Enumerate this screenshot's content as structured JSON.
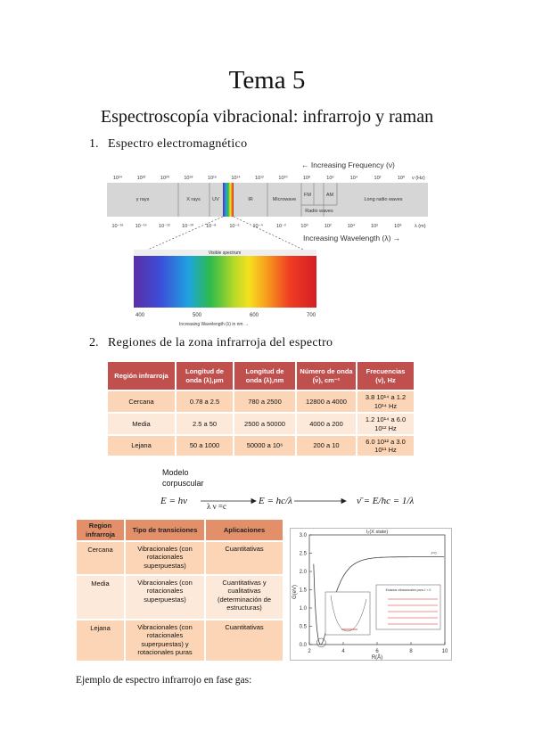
{
  "header": {
    "title": "Tema 5",
    "subtitle": "Espectroscopía vibracional: infrarrojo y raman"
  },
  "sections": [
    {
      "number": "1.",
      "title": "Espectro electromagnético"
    },
    {
      "number": "2.",
      "title": "Regiones de la zona infrarroja del espectro"
    }
  ],
  "spectrum_figure": {
    "frequency_axis_label": "← Increasing Frequency (ν)",
    "frequency_ticks": [
      "10²⁴",
      "10²²",
      "10²⁰",
      "10¹⁸",
      "10¹⁶",
      "10¹⁴",
      "10¹²",
      "10¹⁰",
      "10⁸",
      "10⁶",
      "10⁴",
      "10²",
      "10⁰"
    ],
    "frequency_unit": "ν (Hz)",
    "regions": [
      "γ rays",
      "X rays",
      "UV",
      "IR",
      "Microwave",
      "FM",
      "AM",
      "Long radio waves"
    ],
    "radio_label": "Radio waves",
    "wavelength_ticks": [
      "10⁻¹⁶",
      "10⁻¹⁴",
      "10⁻¹²",
      "10⁻¹⁰",
      "10⁻⁸",
      "10⁻⁶",
      "10⁻⁴",
      "10⁻²",
      "10⁰",
      "10²",
      "10⁴",
      "10⁶",
      "10⁸"
    ],
    "wavelength_unit": "λ (m)",
    "wavelength_axis_label": "Increasing Wavelength (λ) →",
    "visible_title": "Visible spectrum",
    "visible_ticks": [
      "400",
      "500",
      "600",
      "700"
    ],
    "visible_axis_label": "Increasing Wavelength (λ) in nm →"
  },
  "table1": {
    "header": [
      "Región infrarroja",
      "Longitud de onda (λ),µm",
      "Longitud de onda (λ),nm",
      "Número de onda (ν̃), cm⁻¹",
      "Frecuencias (ν), Hz"
    ],
    "rows": [
      [
        "Cercana",
        "0.78 a 2.5",
        "780 a 2500",
        "12800 a 4000",
        "3.8 10¹⁴ a 1.2 10¹⁴ Hz"
      ],
      [
        "Media",
        "2.5 a 50",
        "2500 a 50000",
        "4000 a 200",
        "1.2 10¹⁴ a 6.0 10¹² Hz"
      ],
      [
        "Lejana",
        "50 a 1000",
        "50000 a 10⁶",
        "200 a 10",
        "6.0 10¹² a 3.0 10¹¹ Hz"
      ]
    ]
  },
  "formula": {
    "model_line1": "Modelo",
    "model_line2": "corpuscular",
    "planck": "E = hν",
    "relation": "λ ν =c",
    "energy": "E = hc/λ",
    "wavenumber": "ν̄ = E/hc = 1/λ"
  },
  "table2": {
    "header": [
      "Region infrarroja",
      "Tipo de transiciones",
      "Aplicaciones"
    ],
    "rows": [
      [
        "Cercana",
        "Vibracionales (con rotacionales superpuestas)",
        "Cuantitativas"
      ],
      [
        "Media",
        "Vibracionales (con rotacionales superpuestas)",
        "Cuantitativas y cualitativas (determinación de estructuras)"
      ],
      [
        "Lejana",
        "Vibracionales (con rotacionales superpuestas) y rotacionales puras",
        "Cuantitativas"
      ]
    ]
  },
  "potential_plot": {
    "title": "I₂(X state)",
    "y_label": "G(eV)",
    "x_label": "R(Å)",
    "yticks": [
      "0.0",
      "0.5",
      "1.0",
      "1.5",
      "2.0",
      "2.5",
      "3.0"
    ],
    "xticks": [
      "2",
      "4",
      "6",
      "8",
      "10"
    ],
    "curve_label": "J=0",
    "inset_label": "Estados vibracionales para J = 0"
  },
  "footer_text": "Ejemplo de espectro infrarrojo en fase gas:"
}
